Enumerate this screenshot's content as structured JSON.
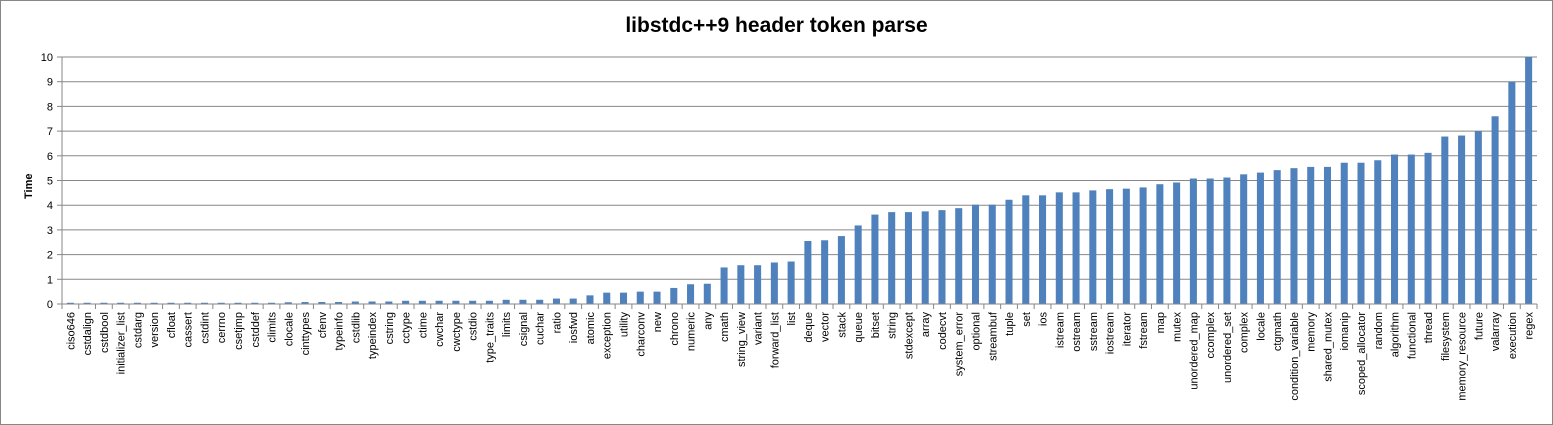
{
  "chart_data": {
    "type": "bar",
    "title": "libstdc++9 header token parse",
    "xlabel": "",
    "ylabel": "Time",
    "ylim": [
      0,
      10
    ],
    "yticks": [
      0,
      1,
      2,
      3,
      4,
      5,
      6,
      7,
      8,
      9,
      10
    ],
    "grid": true,
    "legend": "none",
    "bar_color": "#4f81bd",
    "categories": [
      "ciso646",
      "cstdalign",
      "cstdbool",
      "initializer_list",
      "cstdarg",
      "version",
      "cfloat",
      "cassert",
      "cstdint",
      "cerrno",
      "csetjmp",
      "cstddef",
      "climits",
      "clocale",
      "cinttypes",
      "cfenv",
      "typeinfo",
      "cstdlib",
      "typeindex",
      "cstring",
      "cctype",
      "ctime",
      "cwchar",
      "cwctype",
      "cstdio",
      "type_traits",
      "limits",
      "csignal",
      "cuchar",
      "ratio",
      "iosfwd",
      "atomic",
      "exception",
      "utility",
      "charconv",
      "new",
      "chrono",
      "numeric",
      "any",
      "cmath",
      "string_view",
      "variant",
      "forward_list",
      "list",
      "deque",
      "vector",
      "stack",
      "queue",
      "bitset",
      "string",
      "stdexcept",
      "array",
      "codecvt",
      "system_error",
      "optional",
      "streambuf",
      "tuple",
      "set",
      "ios",
      "istream",
      "ostream",
      "sstream",
      "iostream",
      "iterator",
      "fstream",
      "map",
      "mutex",
      "unordered_map",
      "ccomplex",
      "unordered_set",
      "complex",
      "locale",
      "ctgmath",
      "condition_variable",
      "memory",
      "shared_mutex",
      "iomanip",
      "scoped_allocator",
      "random",
      "algorithm",
      "functional",
      "thread",
      "filesystem",
      "memory_resource",
      "future",
      "valarray",
      "execution",
      "regex"
    ],
    "values": [
      0.05,
      0.05,
      0.05,
      0.05,
      0.05,
      0.05,
      0.05,
      0.05,
      0.05,
      0.05,
      0.05,
      0.05,
      0.05,
      0.07,
      0.08,
      0.08,
      0.08,
      0.1,
      0.1,
      0.1,
      0.13,
      0.13,
      0.13,
      0.13,
      0.13,
      0.13,
      0.17,
      0.17,
      0.17,
      0.22,
      0.22,
      0.35,
      0.46,
      0.46,
      0.5,
      0.5,
      0.65,
      0.8,
      0.82,
      1.48,
      1.57,
      1.57,
      1.68,
      1.72,
      2.55,
      2.58,
      2.75,
      3.18,
      3.62,
      3.72,
      3.72,
      3.75,
      3.8,
      3.88,
      4.02,
      4.02,
      4.22,
      4.4,
      4.4,
      4.52,
      4.52,
      4.6,
      4.65,
      4.67,
      4.72,
      4.85,
      4.92,
      5.08,
      5.08,
      5.12,
      5.25,
      5.32,
      5.42,
      5.5,
      5.55,
      5.55,
      5.72,
      5.72,
      5.82,
      6.05,
      6.05,
      6.12,
      6.78,
      6.82,
      7.0,
      7.6,
      9.0,
      10.0
    ]
  }
}
